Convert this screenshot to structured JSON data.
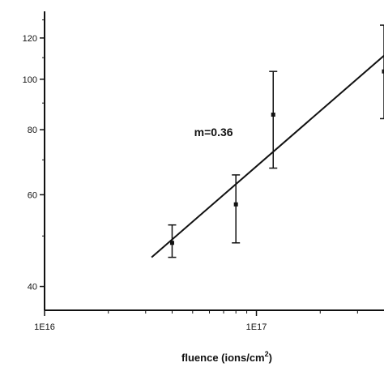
{
  "chart_data": {
    "type": "scatter",
    "xlabel": "fluence (ions/cm",
    "xlabel_superscript": "2",
    "ylabel": "",
    "x_scale": "log",
    "y_scale": "log",
    "xlim": [
      1e+16,
      4e+17
    ],
    "ylim": [
      36,
      135
    ],
    "x_major_ticks": [
      {
        "value": 1e+16,
        "label": "1E16"
      },
      {
        "value": 1e+17,
        "label": "1E17"
      }
    ],
    "y_major_ticks": [
      {
        "value": 40,
        "label": "40"
      },
      {
        "value": 60,
        "label": "60"
      },
      {
        "value": 80,
        "label": "80"
      },
      {
        "value": 100,
        "label": "100"
      },
      {
        "value": 120,
        "label": "120"
      }
    ],
    "points": [
      {
        "x": 4e+16,
        "y": 48.5,
        "err_low": 45.5,
        "err_high": 52.5
      },
      {
        "x": 8e+16,
        "y": 57.5,
        "err_low": 48.5,
        "err_high": 65.5
      },
      {
        "x": 1.2e+17,
        "y": 85.5,
        "err_low": 67.5,
        "err_high": 103.5
      },
      {
        "x": 4e+17,
        "y": 103.5,
        "err_low": 84.0,
        "err_high": 127.0
      }
    ],
    "fit_line": {
      "x": [
        3.2e+16,
        4e+17
      ],
      "y": [
        45.5,
        111.0
      ],
      "label": "m=0.36"
    },
    "annotation": {
      "text": "m=0.36",
      "x": 6.5e+16,
      "y": 74.5
    },
    "grid": false,
    "legend": "none",
    "colors": {
      "axes": "#111111",
      "data": "#111111"
    }
  }
}
